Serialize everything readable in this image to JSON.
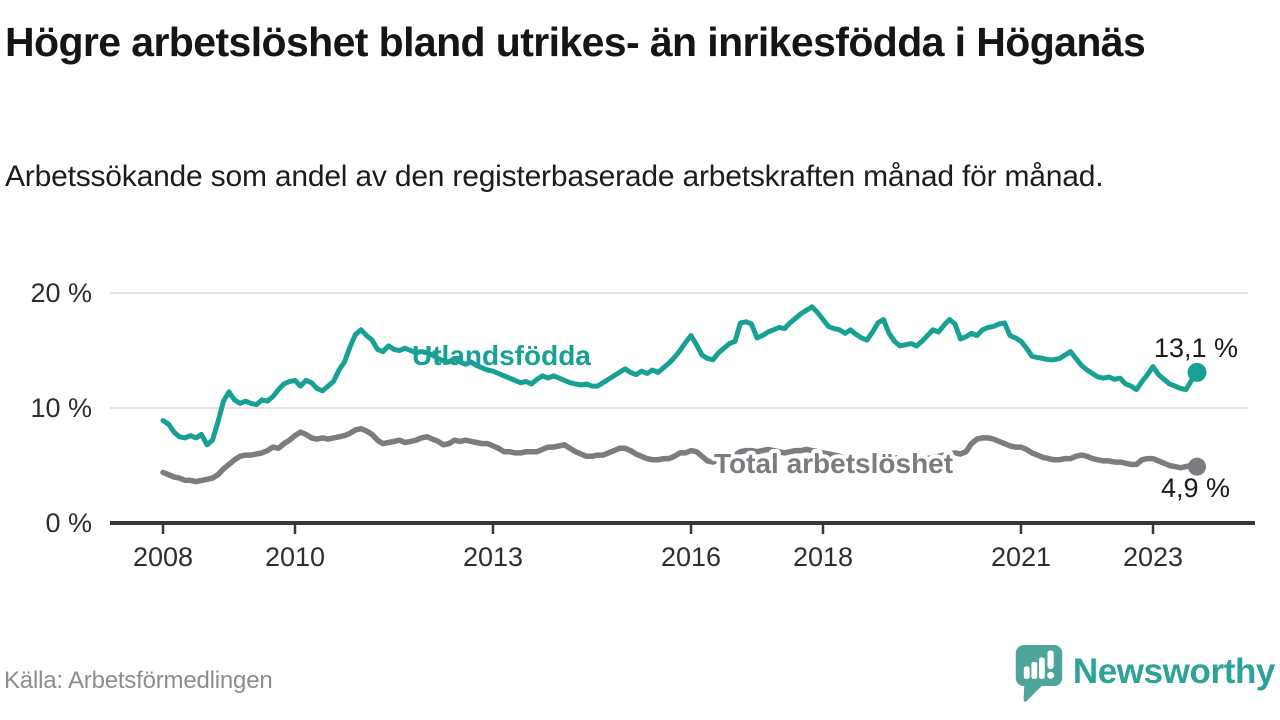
{
  "header": {
    "title": "Högre arbetslöshet bland utrikes- än inrikesfödda i Höganäs",
    "subtitle": "Arbetssökande som andel av den registerbaserade arbetskraften månad för månad."
  },
  "footer": {
    "source": "Källa: Arbetsförmedlingen",
    "brand": "Newsworthy",
    "brand_color": "#2da296",
    "brand_icon": "speech-bubble-bar-chart-exclamation-icon"
  },
  "chart_data": {
    "type": "line",
    "title": "Högre arbetslöshet bland utrikes- än inrikesfödda i Höganäs",
    "subtitle": "Arbetssökande som andel av den registerbaserade arbetskraften månad för månad.",
    "unit": "%",
    "frequency": "monthly",
    "start": "2008-01",
    "end": "2023-09",
    "grid": "horizontal",
    "legend": "inline-labels",
    "ylim": [
      0,
      21.2
    ],
    "y_ticks": [
      {
        "label": "20 %",
        "value": 20
      },
      {
        "label": "10 %",
        "value": 10
      },
      {
        "label": "0 %",
        "value": 0
      }
    ],
    "x_ticks": [
      {
        "label": "2008",
        "year": 2008
      },
      {
        "label": "2010",
        "year": 2010
      },
      {
        "label": "2013",
        "year": 2013
      },
      {
        "label": "2016",
        "year": 2016
      },
      {
        "label": "2018",
        "year": 2018
      },
      {
        "label": "2021",
        "year": 2021
      },
      {
        "label": "2023",
        "year": 2023
      }
    ],
    "series": [
      {
        "name": "Utlandsfödda",
        "color": "#18a095",
        "end_label": "13,1 %",
        "end_value": 13.1,
        "values": [
          8.9,
          8.6,
          7.9,
          7.5,
          7.4,
          7.6,
          7.4,
          7.7,
          6.8,
          7.2,
          8.8,
          10.6,
          11.4,
          10.7,
          10.4,
          10.6,
          10.4,
          10.3,
          10.7,
          10.6,
          11.0,
          11.6,
          12.1,
          12.3,
          12.4,
          11.9,
          12.4,
          12.2,
          11.7,
          11.5,
          11.9,
          12.3,
          13.3,
          14.0,
          15.3,
          16.4,
          16.8,
          16.3,
          15.9,
          15.1,
          14.9,
          15.4,
          15.1,
          15.0,
          15.2,
          15.0,
          14.8,
          14.9,
          14.8,
          14.6,
          14.3,
          14.1,
          14.0,
          14.3,
          14.0,
          13.8,
          14.0,
          13.7,
          13.5,
          13.3,
          13.2,
          13.0,
          12.8,
          12.6,
          12.4,
          12.2,
          12.3,
          12.1,
          12.5,
          12.8,
          12.6,
          12.8,
          12.6,
          12.4,
          12.2,
          12.1,
          12.0,
          12.1,
          11.9,
          11.9,
          12.2,
          12.5,
          12.8,
          13.1,
          13.4,
          13.1,
          12.9,
          13.2,
          13.0,
          13.3,
          13.1,
          13.5,
          13.9,
          14.4,
          15.0,
          15.7,
          16.3,
          15.5,
          14.6,
          14.3,
          14.2,
          14.8,
          15.2,
          15.6,
          15.8,
          17.4,
          17.5,
          17.3,
          16.1,
          16.3,
          16.6,
          16.8,
          17.0,
          16.9,
          17.4,
          17.8,
          18.2,
          18.5,
          18.8,
          18.3,
          17.7,
          17.1,
          16.9,
          16.8,
          16.5,
          16.8,
          16.4,
          16.1,
          15.9,
          16.6,
          17.4,
          17.7,
          16.5,
          15.8,
          15.4,
          15.5,
          15.6,
          15.4,
          15.8,
          16.3,
          16.8,
          16.6,
          17.2,
          17.7,
          17.3,
          16.0,
          16.2,
          16.5,
          16.3,
          16.8,
          17.0,
          17.1,
          17.3,
          17.4,
          16.3,
          16.1,
          15.8,
          15.2,
          14.5,
          14.4,
          14.3,
          14.2,
          14.2,
          14.3,
          14.6,
          14.9,
          14.3,
          13.7,
          13.3,
          13.0,
          12.7,
          12.6,
          12.7,
          12.5,
          12.6,
          12.1,
          11.9,
          11.6,
          12.3,
          12.9,
          13.6,
          12.9,
          12.5,
          12.1,
          11.9,
          11.7,
          11.6,
          12.4,
          13.1
        ]
      },
      {
        "name": "Total arbetslöshet",
        "color": "#7c7c80",
        "end_label": "4,9 %",
        "end_value": 4.9,
        "values": [
          4.4,
          4.2,
          4.0,
          3.9,
          3.7,
          3.7,
          3.6,
          3.7,
          3.8,
          3.9,
          4.2,
          4.7,
          5.1,
          5.5,
          5.8,
          5.9,
          5.9,
          6.0,
          6.1,
          6.3,
          6.6,
          6.5,
          6.9,
          7.2,
          7.6,
          7.9,
          7.7,
          7.4,
          7.3,
          7.4,
          7.3,
          7.4,
          7.5,
          7.6,
          7.8,
          8.1,
          8.2,
          8.0,
          7.7,
          7.2,
          6.9,
          7.0,
          7.1,
          7.2,
          7.0,
          7.1,
          7.2,
          7.4,
          7.5,
          7.3,
          7.1,
          6.8,
          6.9,
          7.2,
          7.1,
          7.2,
          7.1,
          7.0,
          6.9,
          6.9,
          6.7,
          6.5,
          6.2,
          6.2,
          6.1,
          6.1,
          6.2,
          6.2,
          6.2,
          6.4,
          6.6,
          6.6,
          6.7,
          6.8,
          6.5,
          6.2,
          6.0,
          5.8,
          5.8,
          5.9,
          5.9,
          6.1,
          6.3,
          6.5,
          6.5,
          6.3,
          6.0,
          5.8,
          5.6,
          5.5,
          5.5,
          5.6,
          5.6,
          5.8,
          6.1,
          6.1,
          6.3,
          6.2,
          5.8,
          5.4,
          5.3,
          5.5,
          5.6,
          5.8,
          5.9,
          6.2,
          6.3,
          6.3,
          6.2,
          6.3,
          6.4,
          6.3,
          6.2,
          6.1,
          6.2,
          6.3,
          6.3,
          6.4,
          6.3,
          6.2,
          6.1,
          6.0,
          5.9,
          5.8,
          5.6,
          5.7,
          5.6,
          5.5,
          5.5,
          5.6,
          5.7,
          5.8,
          5.8,
          5.7,
          5.6,
          5.5,
          5.4,
          5.5,
          5.6,
          5.6,
          5.7,
          5.8,
          5.9,
          6.0,
          6.1,
          6.0,
          6.2,
          6.9,
          7.3,
          7.4,
          7.4,
          7.3,
          7.1,
          6.9,
          6.7,
          6.6,
          6.6,
          6.4,
          6.1,
          5.9,
          5.7,
          5.6,
          5.5,
          5.5,
          5.6,
          5.6,
          5.8,
          5.9,
          5.8,
          5.6,
          5.5,
          5.4,
          5.4,
          5.3,
          5.3,
          5.2,
          5.1,
          5.1,
          5.5,
          5.6,
          5.6,
          5.4,
          5.2,
          5.0,
          4.9,
          4.8,
          4.9,
          5.0,
          4.9
        ]
      }
    ]
  }
}
